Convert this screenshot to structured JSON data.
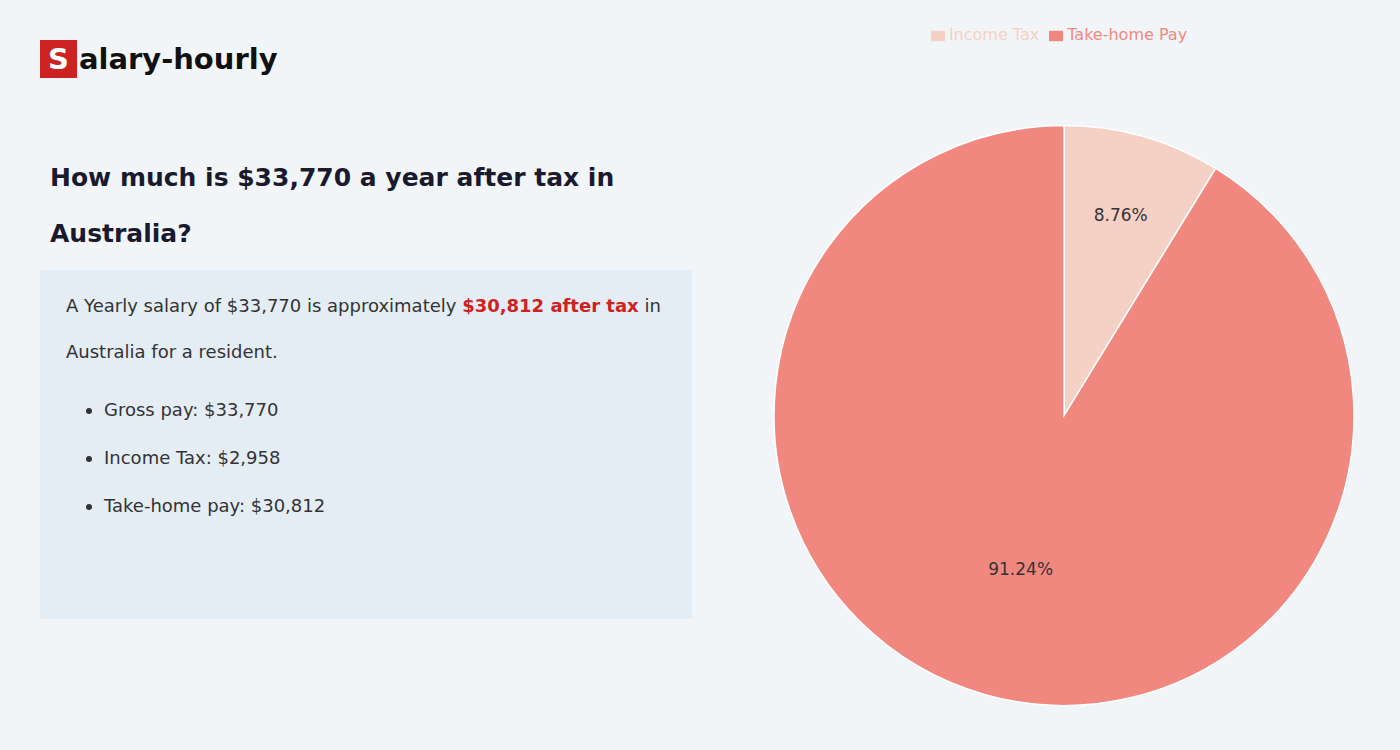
{
  "chart_data": {
    "type": "pie",
    "title": "How much is $33,770 a year after tax in Australia?",
    "categories": [
      "Income Tax",
      "Take-home Pay"
    ],
    "values": [
      8.76,
      91.24
    ],
    "value_labels": [
      "8.76%",
      "91.24%"
    ],
    "colors": [
      "#f5d0c5",
      "#f08880"
    ],
    "data_labels": true,
    "legend": "top",
    "annotations": [
      {
        "text": "S",
        "color": "#cc2222"
      },
      {
        "text": "alary-hourly"
      },
      {
        "text": "A Yearly salary of $33,770 is approximately "
      },
      {
        "text": "$30,812 after tax",
        "color": "#cc2222"
      },
      {
        "text": " in"
      },
      {
        "text": "Australia for a resident."
      },
      {
        "text": "Gross pay: $33,770"
      },
      {
        "text": "Income Tax: $2,958"
      },
      {
        "text": "Take-home pay: $30,812"
      }
    ]
  }
}
